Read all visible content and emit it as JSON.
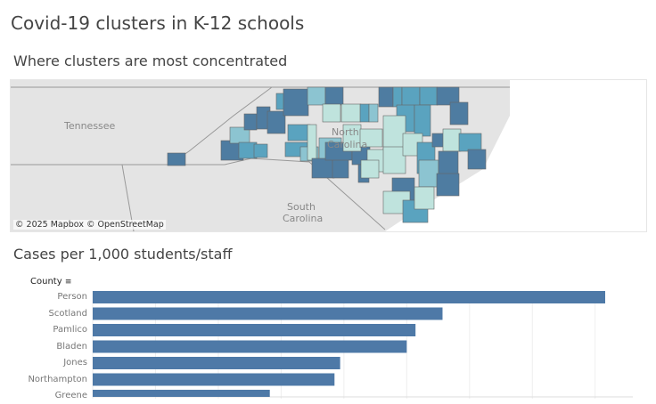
{
  "title": "Covid-19 clusters in K-12 schools",
  "map": {
    "subtitle": "Where clusters are most concentrated",
    "attribution": "© 2025 Mapbox  © OpenStreetMap",
    "labels": {
      "tn": "Tennessee",
      "nc1": "North",
      "nc2": "Carolina",
      "sc1": "South",
      "sc2": "Carolina"
    },
    "palette": {
      "dark": "#4e7ca1",
      "mid": "#5aa3bf",
      "lightmid": "#8cc4d1",
      "light": "#bfe3dd",
      "land": "#e4e4e4",
      "water": "#ffffff"
    }
  },
  "chart_data": {
    "type": "bar",
    "title": "Cases per 1,000 students/staff",
    "ylabel": "County",
    "sort_icon": "sort-descending-icon",
    "categories": [
      "Person",
      "Scotland",
      "Pamlico",
      "Bladen",
      "Jones",
      "Northampton",
      "Greene"
    ],
    "values": [
      8.16,
      5.57,
      5.14,
      5.0,
      3.94,
      3.85,
      2.82
    ],
    "xlim": [
      0,
      8.6
    ],
    "grid": true,
    "bar_color": "#4e79a7"
  }
}
